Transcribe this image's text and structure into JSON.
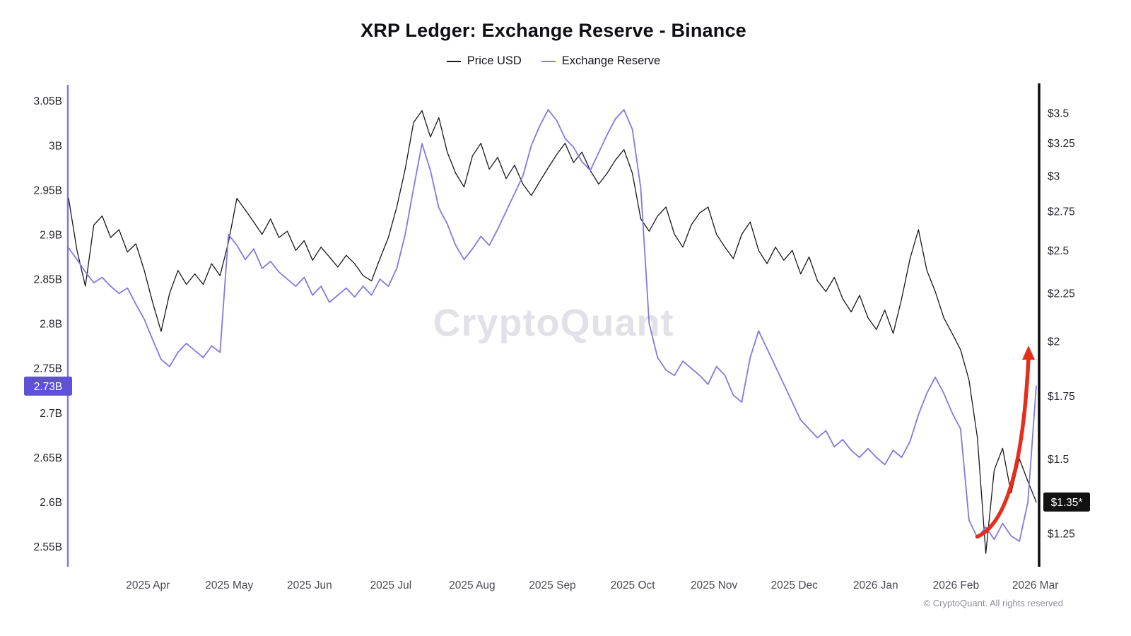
{
  "header": {
    "title": "XRP Ledger: Exchange Reserve - Binance"
  },
  "legend": [
    {
      "label": "Price USD",
      "color": "#17171c"
    },
    {
      "label": "Exchange Reserve",
      "color": "#8179e2"
    }
  ],
  "watermark": "CryptoQuant",
  "footer": "© CryptoQuant. All rights reserved",
  "badges": {
    "left": {
      "text": "2.73B",
      "bg": "#5f51d5",
      "fg": "#ffffff"
    },
    "right": {
      "text": "$1.35*",
      "bg": "#111111",
      "fg": "#ffffff"
    }
  },
  "chart_data": {
    "type": "line",
    "title": "XRP Ledger: Exchange Reserve - Binance",
    "x_ticks": [
      {
        "label": "2025 Apr",
        "pos": 0.082
      },
      {
        "label": "2025 May",
        "pos": 0.166
      },
      {
        "label": "2025 Jun",
        "pos": 0.249
      },
      {
        "label": "2025 Jul",
        "pos": 0.333
      },
      {
        "label": "2025 Aug",
        "pos": 0.417
      },
      {
        "label": "2025 Sep",
        "pos": 0.5
      },
      {
        "label": "2025 Oct",
        "pos": 0.583
      },
      {
        "label": "2025 Nov",
        "pos": 0.667
      },
      {
        "label": "2025 Dec",
        "pos": 0.75
      },
      {
        "label": "2026 Jan",
        "pos": 0.834
      },
      {
        "label": "2026 Feb",
        "pos": 0.917
      },
      {
        "label": "2026 Mar",
        "pos": 0.999
      }
    ],
    "left_axis": {
      "name": "Exchange Reserve (XRP)",
      "scale": "linear",
      "range": [
        2.529,
        3.068
      ],
      "ticks": [
        "3.05B",
        "3B",
        "2.95B",
        "2.9B",
        "2.85B",
        "2.8B",
        "2.75B",
        "2.7B",
        "2.65B",
        "2.6B",
        "2.55B"
      ],
      "values": [
        3.05,
        3.0,
        2.95,
        2.9,
        2.85,
        2.8,
        2.75,
        2.7,
        2.65,
        2.6,
        2.55
      ]
    },
    "right_axis": {
      "name": "Price USD",
      "scale": "log",
      "range": [
        1.156,
        3.75
      ],
      "ticks": [
        "$3.5",
        "$3.25",
        "$3",
        "$2.75",
        "$2.5",
        "$2.25",
        "$2",
        "$1.75",
        "$1.5",
        "$1.25"
      ],
      "values": [
        3.5,
        3.25,
        3.0,
        2.75,
        2.5,
        2.25,
        2.0,
        1.75,
        1.5,
        1.25
      ]
    },
    "series": [
      {
        "name": "Price USD",
        "axis": "right",
        "color": "#17171c",
        "width": 1.3,
        "last_label": "$1.35*",
        "values": [
          2.84,
          2.5,
          2.29,
          2.66,
          2.72,
          2.58,
          2.63,
          2.49,
          2.54,
          2.38,
          2.2,
          2.05,
          2.25,
          2.38,
          2.3,
          2.36,
          2.3,
          2.42,
          2.35,
          2.55,
          2.84,
          2.76,
          2.68,
          2.6,
          2.7,
          2.58,
          2.62,
          2.5,
          2.56,
          2.44,
          2.52,
          2.46,
          2.4,
          2.47,
          2.42,
          2.35,
          2.32,
          2.45,
          2.58,
          2.78,
          3.05,
          3.42,
          3.52,
          3.3,
          3.46,
          3.18,
          3.02,
          2.92,
          3.15,
          3.25,
          3.05,
          3.14,
          2.98,
          3.08,
          2.94,
          2.86,
          2.96,
          3.06,
          3.16,
          3.25,
          3.1,
          3.18,
          3.04,
          2.94,
          3.02,
          3.12,
          3.2,
          3.02,
          2.7,
          2.62,
          2.72,
          2.78,
          2.6,
          2.52,
          2.66,
          2.74,
          2.78,
          2.6,
          2.52,
          2.45,
          2.6,
          2.68,
          2.5,
          2.42,
          2.52,
          2.44,
          2.5,
          2.36,
          2.46,
          2.32,
          2.26,
          2.34,
          2.22,
          2.15,
          2.24,
          2.12,
          2.06,
          2.16,
          2.04,
          2.22,
          2.45,
          2.63,
          2.38,
          2.26,
          2.12,
          2.04,
          1.96,
          1.82,
          1.58,
          1.19,
          1.46,
          1.54,
          1.38,
          1.5,
          1.42,
          1.35
        ]
      },
      {
        "name": "Exchange Reserve",
        "axis": "left",
        "color": "#8179e2",
        "width": 1.8,
        "last_label": "2.73B",
        "values": [
          2.885,
          2.872,
          2.858,
          2.846,
          2.852,
          2.842,
          2.834,
          2.84,
          2.822,
          2.805,
          2.782,
          2.76,
          2.752,
          2.768,
          2.778,
          2.77,
          2.762,
          2.775,
          2.768,
          2.9,
          2.888,
          2.872,
          2.884,
          2.862,
          2.87,
          2.858,
          2.85,
          2.842,
          2.852,
          2.832,
          2.842,
          2.824,
          2.832,
          2.84,
          2.83,
          2.842,
          2.832,
          2.85,
          2.842,
          2.862,
          2.9,
          2.952,
          3.002,
          2.972,
          2.93,
          2.912,
          2.888,
          2.872,
          2.884,
          2.898,
          2.888,
          2.906,
          2.926,
          2.946,
          2.966,
          3.0,
          3.022,
          3.04,
          3.028,
          3.008,
          2.998,
          2.982,
          2.972,
          2.992,
          3.012,
          3.03,
          3.04,
          3.018,
          2.952,
          2.8,
          2.762,
          2.748,
          2.742,
          2.758,
          2.75,
          2.742,
          2.732,
          2.752,
          2.742,
          2.72,
          2.712,
          2.762,
          2.792,
          2.772,
          2.752,
          2.732,
          2.712,
          2.692,
          2.682,
          2.672,
          2.68,
          2.662,
          2.67,
          2.658,
          2.65,
          2.66,
          2.65,
          2.642,
          2.658,
          2.65,
          2.668,
          2.698,
          2.722,
          2.74,
          2.722,
          2.7,
          2.682,
          2.58,
          2.56,
          2.572,
          2.558,
          2.576,
          2.562,
          2.556,
          2.6,
          2.73
        ]
      }
    ],
    "annotation_arrow": {
      "color": "#e62e1b",
      "axis": "right",
      "from": {
        "t": 0.939,
        "value": 1.24
      },
      "to": {
        "t": 0.992,
        "value": 1.97
      }
    }
  }
}
